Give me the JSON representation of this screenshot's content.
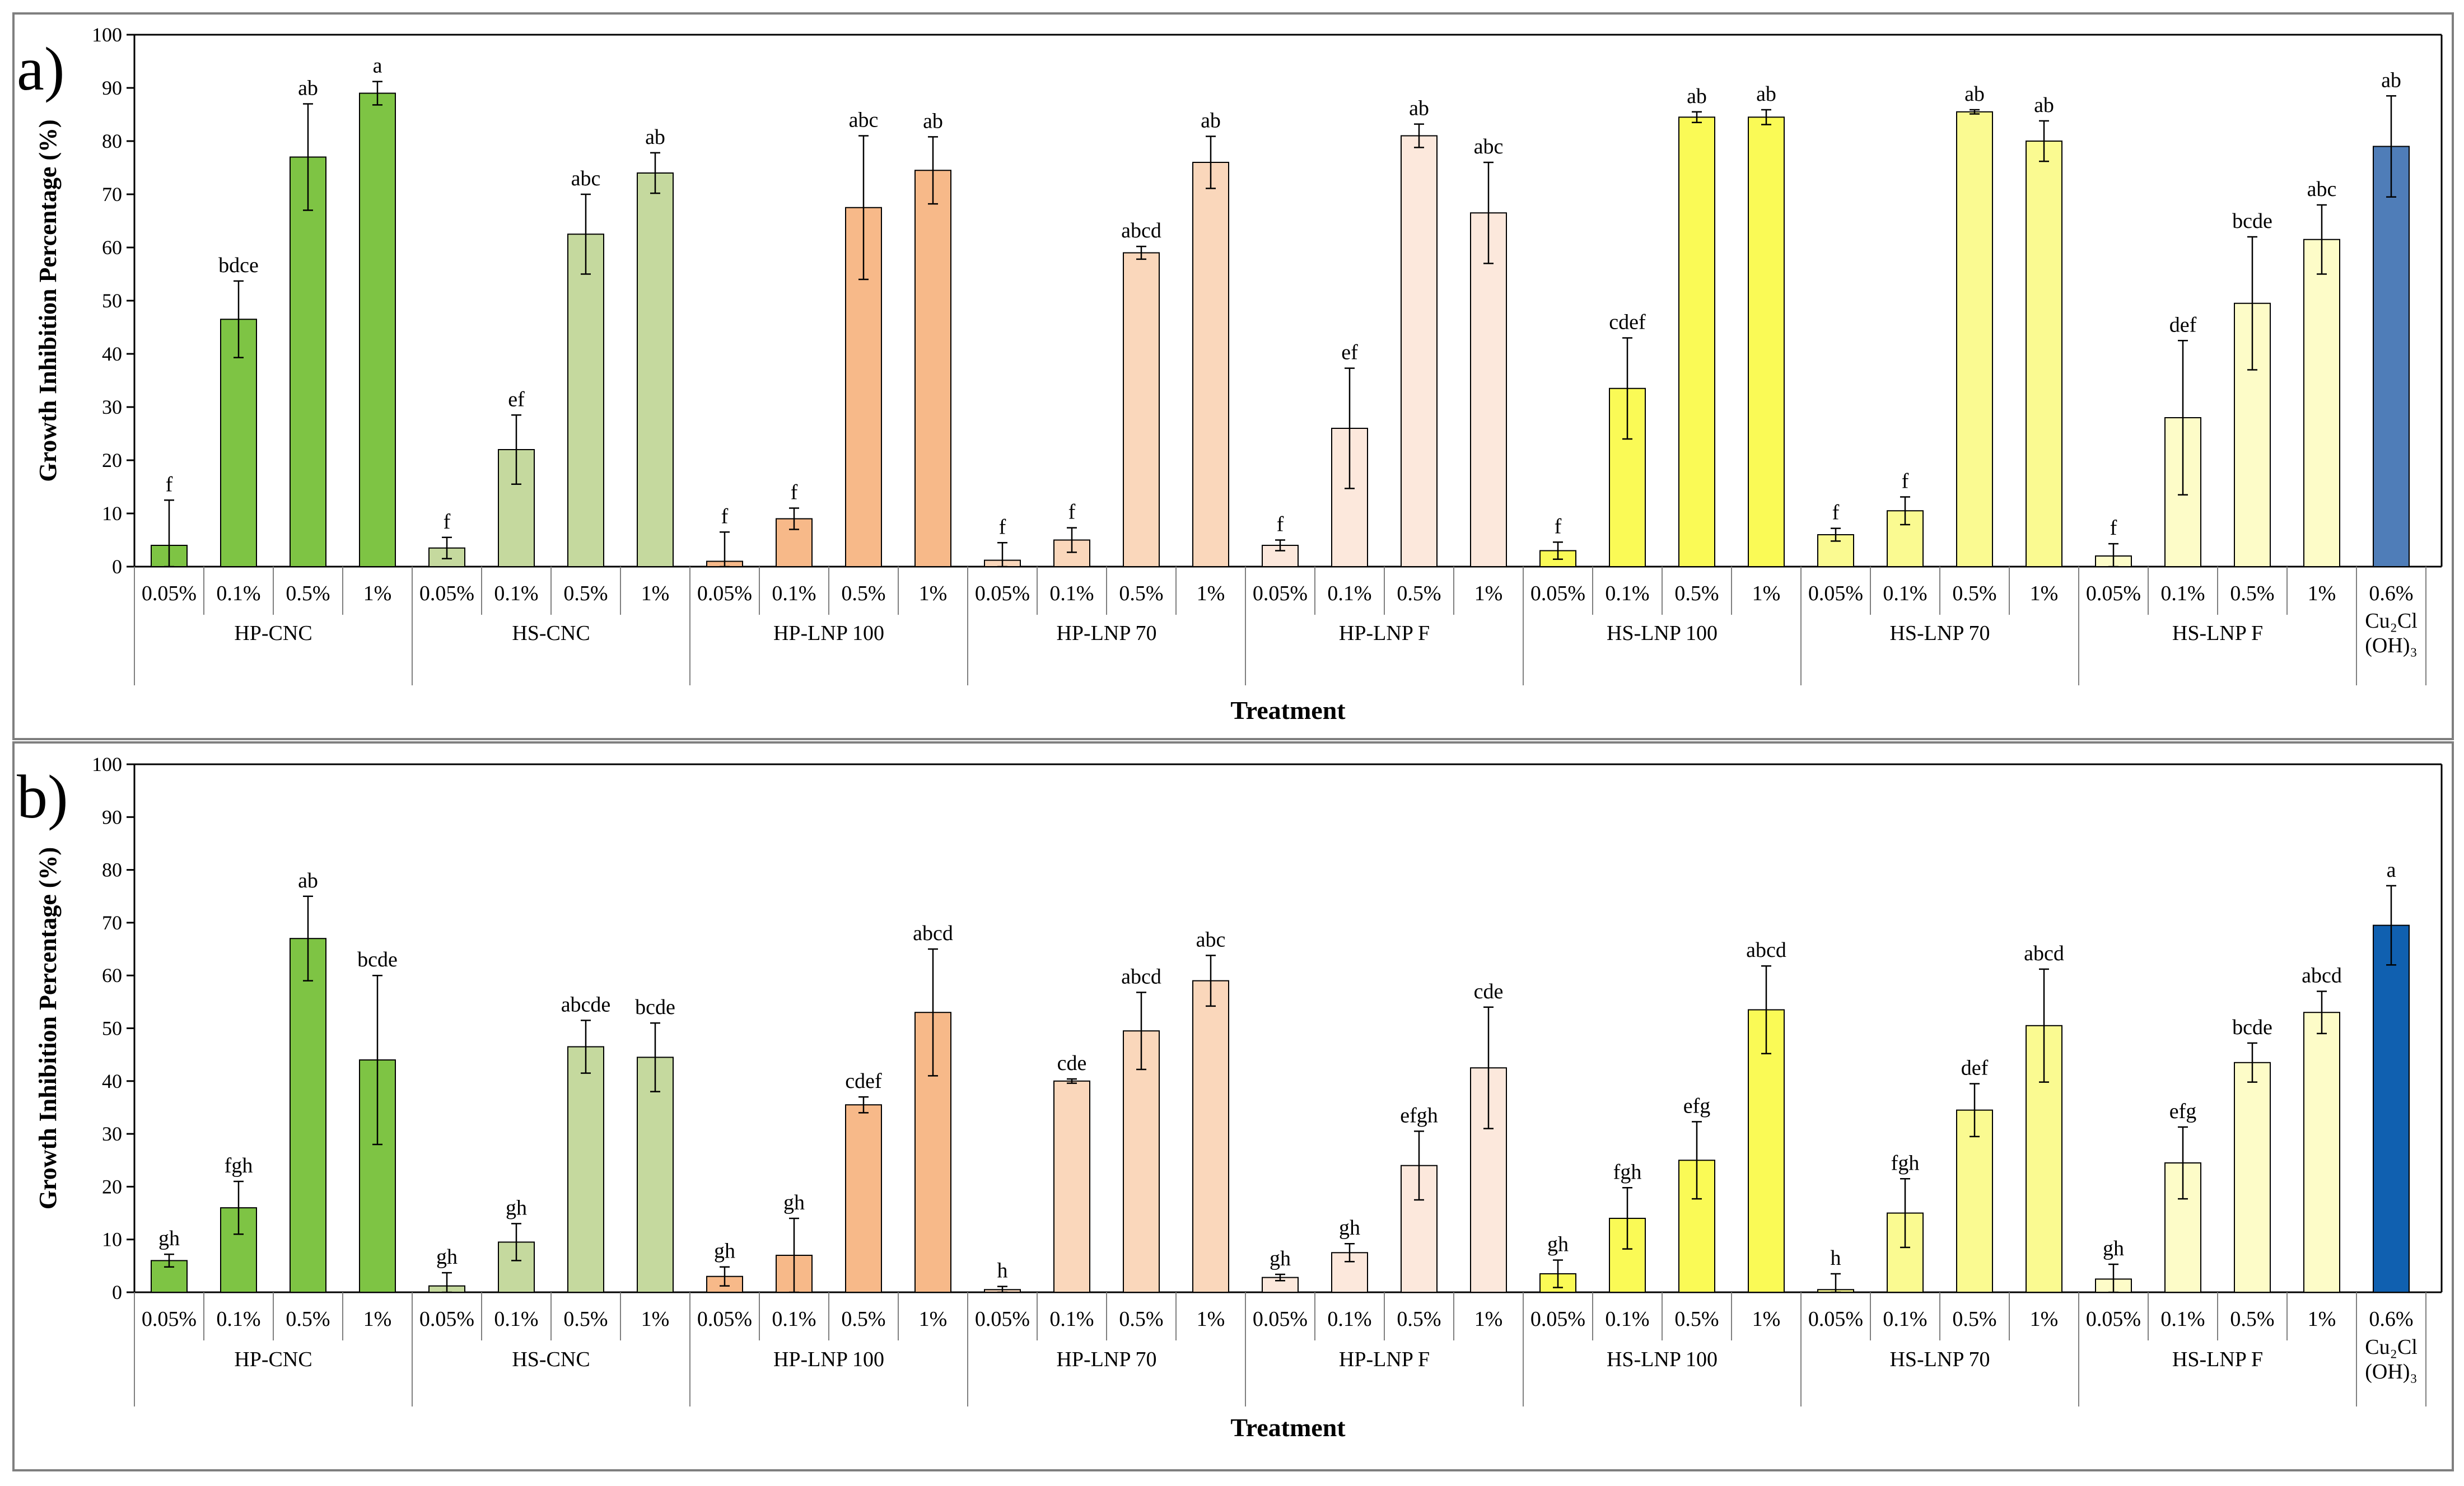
{
  "colors": {
    "HP-CNC": "#7ec444",
    "HS-CNC": "#c5d99e",
    "HP-LNP 100": "#f7b989",
    "HP-LNP 70": "#fad7bb",
    "HP-LNP F": "#fce8dc",
    "HS-LNP 100": "#fafa56",
    "HS-LNP 70": "#fafa91",
    "HS-LNP F": "#fdfcc8",
    "Cu2Cl(OH)3_a": "#4f7db8",
    "Cu2Cl(OH)3_b": "#1060b0"
  },
  "chart_data": [
    {
      "type": "bar",
      "panel_label": "a)",
      "ylabel": "Growth Inhibition  Percentage (%)",
      "xlabel": "Treatment",
      "ylim": [
        0,
        100
      ],
      "yticks": [
        "0",
        "10",
        "20",
        "30",
        "40",
        "50",
        "60",
        "70",
        "80",
        "90",
        "100"
      ],
      "groups": [
        {
          "name": "HP-CNC",
          "categories": [
            "0.05%",
            "0.1%",
            "0.5%",
            "1%"
          ],
          "values": [
            4,
            46.5,
            77,
            89
          ],
          "errors": [
            8.5,
            7.2,
            10,
            2.2
          ],
          "letters": [
            "f",
            "bdce",
            "ab",
            "a"
          ]
        },
        {
          "name": "HS-CNC",
          "categories": [
            "0.05%",
            "0.1%",
            "0.5%",
            "1%"
          ],
          "values": [
            3.5,
            22,
            62.5,
            74
          ],
          "errors": [
            2,
            6.5,
            7.5,
            3.8
          ],
          "letters": [
            "f",
            "ef",
            "abc",
            "ab"
          ]
        },
        {
          "name": "HP-LNP 100",
          "categories": [
            "0.05%",
            "0.1%",
            "0.5%",
            "1%"
          ],
          "values": [
            1,
            9,
            67.5,
            74.5
          ],
          "errors": [
            5.5,
            2,
            13.5,
            6.3
          ],
          "letters": [
            "f",
            "f",
            "abc",
            "ab"
          ]
        },
        {
          "name": "HP-LNP 70",
          "categories": [
            "0.05%",
            "0.1%",
            "0.5%",
            "1%"
          ],
          "values": [
            1.2,
            5,
            59,
            76
          ],
          "errors": [
            3.3,
            2.3,
            1.2,
            4.9
          ],
          "letters": [
            "f",
            "f",
            "abcd",
            "ab"
          ]
        },
        {
          "name": "HP-LNP F",
          "categories": [
            "0.05%",
            "0.1%",
            "0.5%",
            "1%"
          ],
          "values": [
            4,
            26,
            81,
            66.5
          ],
          "errors": [
            1,
            11.3,
            2.2,
            9.5
          ],
          "letters": [
            "f",
            "ef",
            "ab",
            "abc"
          ]
        },
        {
          "name": "HS-LNP 100",
          "categories": [
            "0.05%",
            "0.1%",
            "0.5%",
            "1%"
          ],
          "values": [
            3,
            33.5,
            84.5,
            84.5
          ],
          "errors": [
            1.6,
            9.5,
            1,
            1.4
          ],
          "letters": [
            "f",
            "cdef",
            "ab",
            "ab"
          ]
        },
        {
          "name": "HS-LNP 70",
          "categories": [
            "0.05%",
            "0.1%",
            "0.5%",
            "1%"
          ],
          "values": [
            6,
            10.5,
            85.5,
            80
          ],
          "errors": [
            1.2,
            2.6,
            0.4,
            3.8
          ],
          "letters": [
            "f",
            "f",
            "ab",
            "ab"
          ]
        },
        {
          "name": "HS-LNP F",
          "categories": [
            "0.05%",
            "0.1%",
            "0.5%",
            "1%"
          ],
          "values": [
            2,
            28,
            49.5,
            61.5
          ],
          "errors": [
            2.3,
            14.5,
            12.5,
            6.5
          ],
          "letters": [
            "f",
            "def",
            "bcde",
            "abc"
          ]
        },
        {
          "name": "Cu₂Cl|(OH)₃",
          "categories": [
            "0.6%"
          ],
          "values": [
            79
          ],
          "errors": [
            9.5
          ],
          "letters": [
            "ab"
          ]
        }
      ]
    },
    {
      "type": "bar",
      "panel_label": "b)",
      "ylabel": "Growth Inhibition  Percentage (%)",
      "xlabel": "Treatment",
      "ylim": [
        0,
        100
      ],
      "yticks": [
        "0",
        "10",
        "20",
        "30",
        "40",
        "50",
        "60",
        "70",
        "80",
        "90",
        "100"
      ],
      "groups": [
        {
          "name": "HP-CNC",
          "categories": [
            "0.05%",
            "0.1%",
            "0.5%",
            "1%"
          ],
          "values": [
            6,
            16,
            67,
            44
          ],
          "errors": [
            1.2,
            5,
            8,
            16
          ],
          "letters": [
            "gh",
            "fgh",
            "ab",
            "bcde"
          ]
        },
        {
          "name": "HS-CNC",
          "categories": [
            "0.05%",
            "0.1%",
            "0.5%",
            "1%"
          ],
          "values": [
            1.2,
            9.5,
            46.5,
            44.5
          ],
          "errors": [
            2.5,
            3.5,
            5,
            6.5
          ],
          "letters": [
            "gh",
            "gh",
            "abcde",
            "bcde"
          ]
        },
        {
          "name": "HP-LNP 100",
          "categories": [
            "0.05%",
            "0.1%",
            "0.5%",
            "1%"
          ],
          "values": [
            3,
            7,
            35.5,
            53
          ],
          "errors": [
            1.8,
            7,
            1.5,
            12
          ],
          "letters": [
            "gh",
            "gh",
            "cdef",
            "abcd"
          ]
        },
        {
          "name": "HP-LNP 70",
          "categories": [
            "0.05%",
            "0.1%",
            "0.5%",
            "1%"
          ],
          "values": [
            0.5,
            40,
            49.5,
            59
          ],
          "errors": [
            0.6,
            0.4,
            7.3,
            4.8
          ],
          "letters": [
            "h",
            "cde",
            "abcd",
            "abc"
          ]
        },
        {
          "name": "HP-LNP F",
          "categories": [
            "0.05%",
            "0.1%",
            "0.5%",
            "1%"
          ],
          "values": [
            2.8,
            7.5,
            24,
            42.5
          ],
          "errors": [
            0.6,
            1.7,
            6.5,
            11.5
          ],
          "letters": [
            "gh",
            "gh",
            "efgh",
            "cde"
          ]
        },
        {
          "name": "HS-LNP 100",
          "categories": [
            "0.05%",
            "0.1%",
            "0.5%",
            "1%"
          ],
          "values": [
            3.5,
            14,
            25,
            53.5
          ],
          "errors": [
            2.6,
            5.8,
            7.3,
            8.3
          ],
          "letters": [
            "gh",
            "fgh",
            "efg",
            "abcd"
          ]
        },
        {
          "name": "HS-LNP 70",
          "categories": [
            "0.05%",
            "0.1%",
            "0.5%",
            "1%"
          ],
          "values": [
            0.5,
            15,
            34.5,
            50.5
          ],
          "errors": [
            3,
            6.5,
            5,
            10.7
          ],
          "letters": [
            "h",
            "fgh",
            "def",
            "abcd"
          ]
        },
        {
          "name": "HS-LNP F",
          "categories": [
            "0.05%",
            "0.1%",
            "0.5%",
            "1%"
          ],
          "values": [
            2.5,
            24.5,
            43.5,
            53
          ],
          "errors": [
            2.8,
            6.8,
            3.7,
            4
          ],
          "letters": [
            "gh",
            "efg",
            "bcde",
            "abcd"
          ]
        },
        {
          "name": "Cu₂Cl|(OH)₃",
          "categories": [
            "0.6%"
          ],
          "values": [
            69.5
          ],
          "errors": [
            7.5
          ],
          "letters": [
            "a"
          ]
        }
      ]
    }
  ]
}
